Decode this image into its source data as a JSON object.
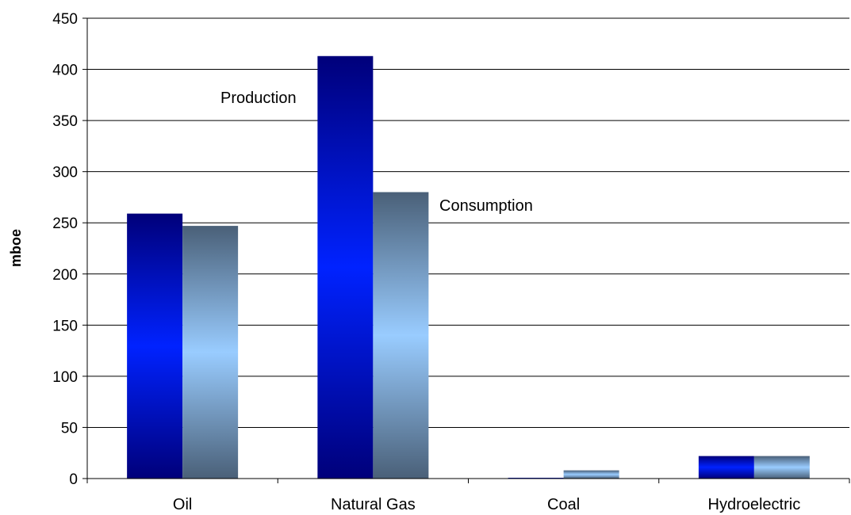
{
  "chart_data": {
    "type": "bar",
    "categories": [
      "Oil",
      "Natural Gas",
      "Coal",
      "Hydroelectric"
    ],
    "series": [
      {
        "name": "Production",
        "values": [
          259,
          413,
          0.5,
          22
        ]
      },
      {
        "name": "Consumption",
        "values": [
          247,
          280,
          8,
          22
        ]
      }
    ],
    "ylabel": "mboe",
    "xlabel": "",
    "ylim": [
      0,
      450
    ],
    "yticks": [
      0,
      50,
      100,
      150,
      200,
      250,
      300,
      350,
      400,
      450
    ],
    "grid": true,
    "legend": "none",
    "annotations": {
      "production_label": "Production",
      "consumption_label": "Consumption"
    },
    "colors": {
      "production_dark": "#00007a",
      "production_light": "#0022ff",
      "consumption_dark": "#4a6078",
      "consumption_light": "#99ccff",
      "grid": "#000000"
    }
  }
}
